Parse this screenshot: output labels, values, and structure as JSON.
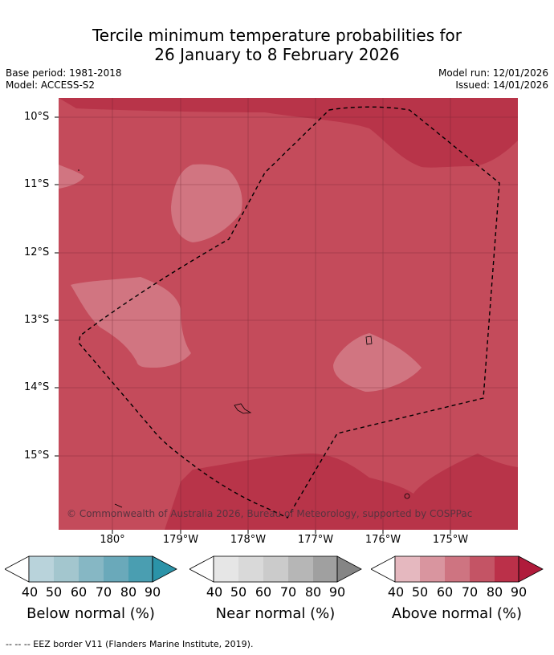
{
  "title": {
    "line1": "Tercile minimum temperature probabilities for",
    "line2": "26 January to 8 February 2026"
  },
  "meta": {
    "base_period": "Base period: 1981-2018",
    "model": "Model: ACCESS-S2",
    "model_run": "Model run: 12/01/2026",
    "issued": "Issued: 14/01/2026"
  },
  "map": {
    "lat_labels": [
      "10°S",
      "11°S",
      "12°S",
      "13°S",
      "14°S",
      "15°S"
    ],
    "lon_labels": [
      "180°",
      "179°W",
      "178°W",
      "177°W",
      "176°W",
      "175°W"
    ],
    "copyright": "© Commonwealth of Australia 2026, Bureau of Meteorology, supported by COSPPac",
    "colors": {
      "above_60": "#c44b5b",
      "above_70": "#b83449",
      "above_50": "#d17581",
      "border": "#000000"
    }
  },
  "legends": [
    {
      "name": "below",
      "title": "Below normal (%)",
      "ticks": [
        "40",
        "50",
        "60",
        "70",
        "80",
        "90"
      ],
      "colors": [
        "#b9d3db",
        "#a3c6ce",
        "#86b7c4",
        "#6aa9ba",
        "#4a9eb1",
        "#2b93a8"
      ]
    },
    {
      "name": "near",
      "title": "Near normal (%)",
      "ticks": [
        "40",
        "50",
        "60",
        "70",
        "80",
        "90"
      ],
      "colors": [
        "#e6e6e6",
        "#d9d9d9",
        "#cbcbcb",
        "#b6b6b6",
        "#a0a0a0",
        "#858585"
      ]
    },
    {
      "name": "above",
      "title": "Above normal (%)",
      "ticks": [
        "40",
        "50",
        "60",
        "70",
        "80",
        "90"
      ],
      "colors": [
        "#e5b8bf",
        "#d9959f",
        "#ce7481",
        "#c45465",
        "#bb3049",
        "#b01b3b"
      ]
    }
  ],
  "footnote": "--  --  -- EEZ border V11 (Flanders Marine Institute, 2019)."
}
